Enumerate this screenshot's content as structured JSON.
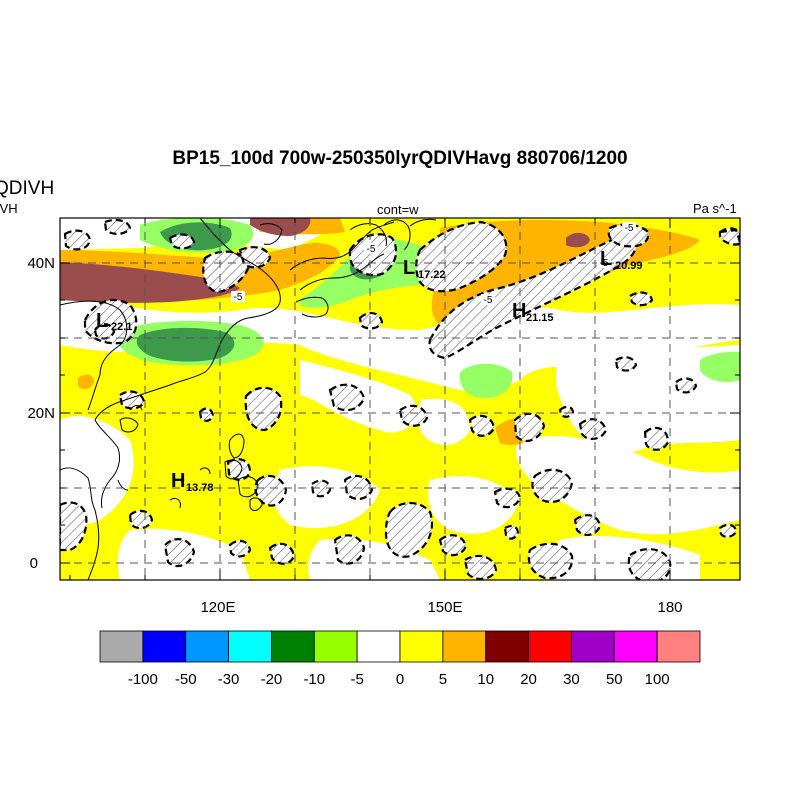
{
  "header": {
    "title": "BP15_100d 700w-250350lyrQDIVHavg  880706/1200",
    "left_label_main": "QDIVH",
    "left_label_sub": "IVH",
    "center_label": "cont=w",
    "right_label": "Pa s^-1"
  },
  "map": {
    "lon_ticks": [
      "120E",
      "150E",
      "180"
    ],
    "lat_ticks": [
      "40N",
      "20N",
      "0"
    ]
  },
  "systems": [
    {
      "letter": "L",
      "value": "22.1"
    },
    {
      "letter": "L",
      "value": "17.22"
    },
    {
      "letter": "L",
      "value": "20.99"
    },
    {
      "letter": "H",
      "value": "21.15"
    },
    {
      "letter": "H",
      "value": "13.78"
    }
  ],
  "contour_labels": [
    "-5",
    "-5",
    "-5",
    "-5",
    "-5"
  ],
  "colorbar": {
    "colors": [
      "#aaaaaa",
      "#0000ff",
      "#0096ff",
      "#00ffff",
      "#008000",
      "#96ff00",
      "#ffffff",
      "#ffff00",
      "#ffb400",
      "#800000",
      "#ff0000",
      "#a000c8",
      "#ff00ff",
      "#ff8080"
    ],
    "labels": [
      "-100",
      "-50",
      "-30",
      "-20",
      "-10",
      "-5",
      "0",
      "5",
      "10",
      "20",
      "30",
      "50",
      "100"
    ]
  }
}
